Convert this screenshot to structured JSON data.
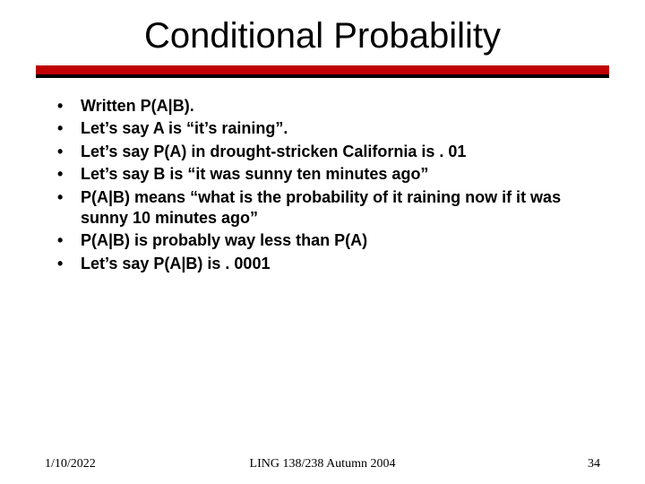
{
  "title": "Conditional Probability",
  "divider": {
    "top_color": "#c00000",
    "bottom_color": "#000000"
  },
  "bullets": [
    "Written P(A|B).",
    "Let’s say A is “it’s raining”.",
    "Let’s say P(A) in drought-stricken California is . 01",
    "Let’s say B is “it was sunny ten minutes ago”",
    "P(A|B) means “what is the probability of it raining now if it was sunny 10 minutes ago”",
    "P(A|B) is probably way less than P(A)",
    "Let’s say P(A|B) is . 0001"
  ],
  "footer": {
    "date": "1/10/2022",
    "course": "LING 138/238 Autumn 2004",
    "page": "34"
  },
  "style": {
    "background": "#ffffff",
    "title_fontsize": 40,
    "bullet_fontsize": 18,
    "footer_fontsize": 14,
    "title_font": "Comic Sans MS",
    "body_font": "Comic Sans MS",
    "footer_font": "Times New Roman"
  }
}
